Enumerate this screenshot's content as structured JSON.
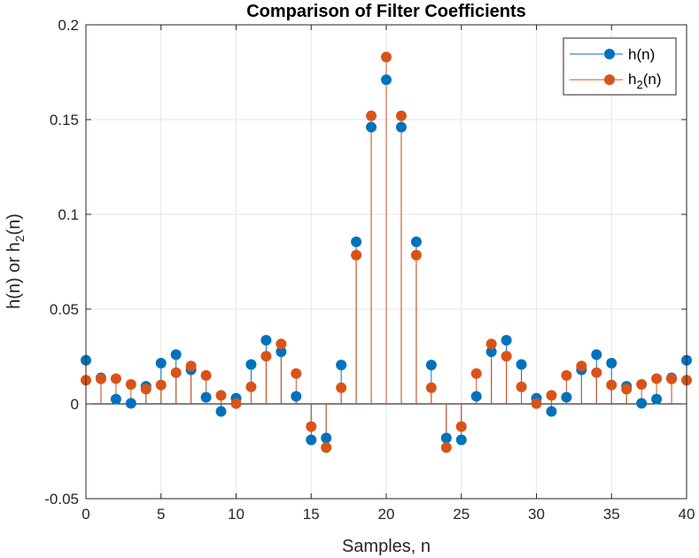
{
  "chart_data": {
    "type": "stem",
    "title": "Comparison of Filter Coefficients",
    "xlabel": "Samples, n",
    "ylabel": "h(n) or h2(n)",
    "xlim": [
      0,
      40
    ],
    "ylim": [
      -0.05,
      0.2
    ],
    "xticks": [
      0,
      5,
      10,
      15,
      20,
      25,
      30,
      35,
      40
    ],
    "yticks": [
      -0.05,
      0,
      0.05,
      0.1,
      0.15,
      0.2
    ],
    "xtick_labels": [
      "0",
      "5",
      "10",
      "15",
      "20",
      "25",
      "30",
      "35",
      "40"
    ],
    "ytick_labels": [
      "-0.05",
      "0",
      "0.05",
      "0.1",
      "0.15",
      "0.2"
    ],
    "grid": true,
    "legend_position": "top-right",
    "series": [
      {
        "name": "h(n)",
        "color": "#0072BD",
        "x": [
          0,
          1,
          2,
          3,
          4,
          5,
          6,
          7,
          8,
          9,
          10,
          11,
          12,
          13,
          14,
          15,
          16,
          17,
          18,
          19,
          20,
          21,
          22,
          23,
          24,
          25,
          26,
          27,
          28,
          29,
          30,
          31,
          32,
          33,
          34,
          35,
          36,
          37,
          38,
          39,
          40
        ],
        "values": [
          0.023,
          0.0137,
          0.0025,
          0.0003,
          0.0093,
          0.0215,
          0.026,
          0.018,
          0.0035,
          -0.004,
          0.003,
          0.0208,
          0.0336,
          0.0275,
          0.004,
          -0.019,
          -0.018,
          0.0205,
          0.0855,
          0.146,
          0.171,
          0.146,
          0.0855,
          0.0205,
          -0.018,
          -0.019,
          0.004,
          0.0275,
          0.0336,
          0.0208,
          0.003,
          -0.004,
          0.0035,
          0.018,
          0.026,
          0.0215,
          0.0093,
          0.0003,
          0.0025,
          0.0137,
          0.023
        ]
      },
      {
        "name": "h2(n)",
        "color": "#D95319",
        "x": [
          0,
          1,
          2,
          3,
          4,
          5,
          6,
          7,
          8,
          9,
          10,
          11,
          12,
          13,
          14,
          15,
          16,
          17,
          18,
          19,
          20,
          21,
          22,
          23,
          24,
          25,
          26,
          27,
          28,
          29,
          30,
          31,
          32,
          33,
          34,
          35,
          36,
          37,
          38,
          39,
          40
        ],
        "values": [
          0.0125,
          0.0132,
          0.0133,
          0.0103,
          0.0078,
          0.01,
          0.0165,
          0.02,
          0.015,
          0.0045,
          0.0002,
          0.009,
          0.0252,
          0.0316,
          0.016,
          -0.012,
          -0.023,
          0.0085,
          0.0785,
          0.152,
          0.183,
          0.152,
          0.0785,
          0.0085,
          -0.023,
          -0.012,
          0.016,
          0.0316,
          0.0252,
          0.009,
          0.0002,
          0.0045,
          0.015,
          0.02,
          0.0165,
          0.01,
          0.0078,
          0.0103,
          0.0133,
          0.0132,
          0.0125
        ]
      }
    ]
  },
  "legend": {
    "h_main": "h(n)",
    "h2_main": "h",
    "h2_sub": "2",
    "h2_tail": "(n)"
  },
  "ylabel_parts": {
    "a": "h(n) or h",
    "sub": "2",
    "b": "(n)"
  }
}
